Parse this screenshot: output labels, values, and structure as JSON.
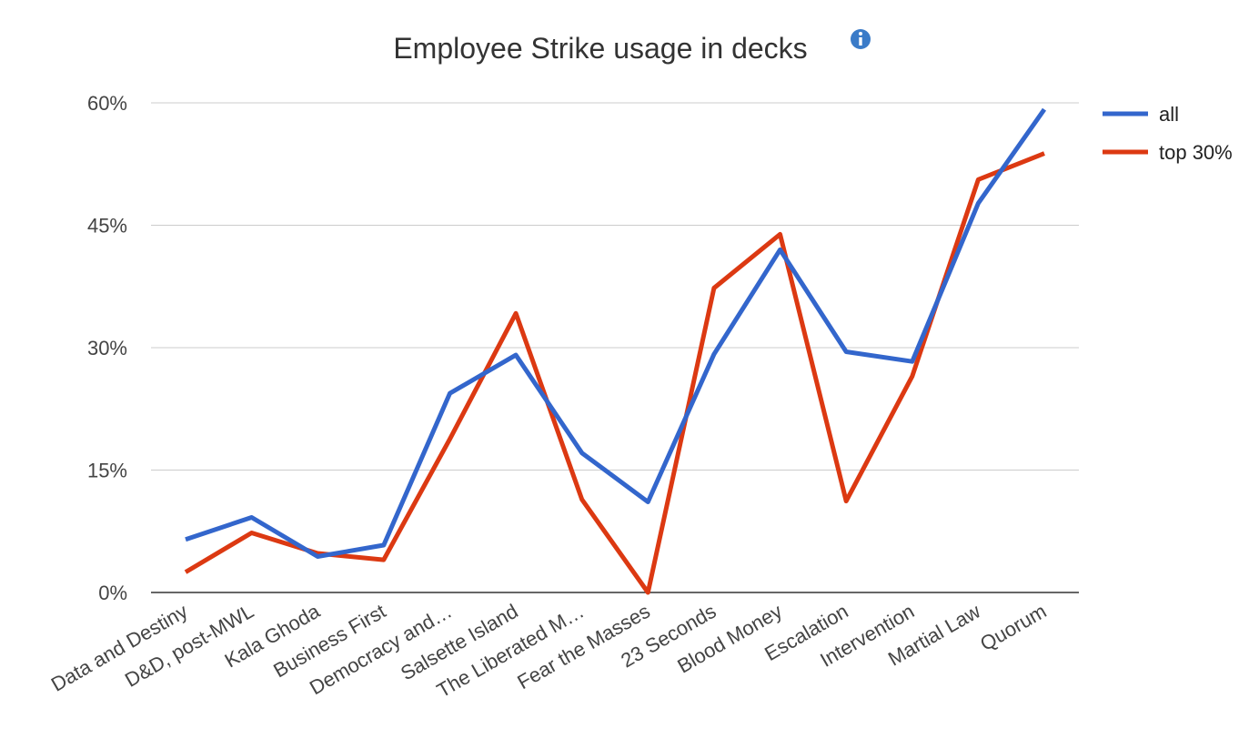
{
  "chart_data": {
    "type": "line",
    "title": "Employee Strike usage in decks",
    "info_icon": "info-icon",
    "xlabel": "",
    "ylabel": "",
    "ylim": [
      0,
      60
    ],
    "y_ticks": [
      0,
      15,
      30,
      45,
      60
    ],
    "y_tick_labels": [
      "0%",
      "15%",
      "30%",
      "45%",
      "60%"
    ],
    "grid": true,
    "legend_position": "right",
    "categories": [
      "Data and Destiny",
      "D&D, post-MWL",
      "Kala Ghoda",
      "Business First",
      "Democracy and…",
      "Salsette Island",
      "The Liberated M…",
      "Fear the Masses",
      "23 Seconds",
      "Blood Money",
      "Escalation",
      "Intervention",
      "Martial Law",
      "Quorum"
    ],
    "series": [
      {
        "name": "all",
        "color": "#3366cc",
        "values": [
          6.5,
          9.2,
          4.4,
          5.8,
          24.4,
          29.1,
          17.1,
          11.1,
          29.2,
          42.0,
          29.5,
          28.3,
          47.7,
          59.2
        ]
      },
      {
        "name": "top 30%",
        "color": "#dc3912",
        "values": [
          2.5,
          7.3,
          4.8,
          4.0,
          18.8,
          34.2,
          11.4,
          0.0,
          37.3,
          43.9,
          11.2,
          26.5,
          50.6,
          53.8
        ]
      }
    ]
  }
}
